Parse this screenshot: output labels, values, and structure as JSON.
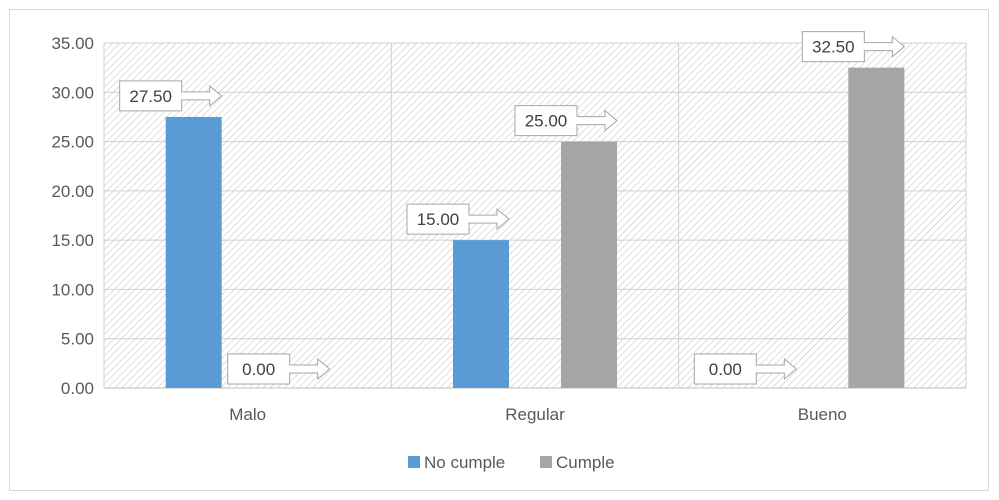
{
  "chart_data": {
    "type": "bar",
    "categories": [
      "Malo",
      "Regular",
      "Bueno"
    ],
    "series": [
      {
        "name": "No cumple",
        "values": [
          27.5,
          15.0,
          0.0
        ],
        "color": "#5b9bd5"
      },
      {
        "name": "Cumple",
        "values": [
          0.0,
          25.0,
          32.5
        ],
        "color": "#a5a5a5"
      }
    ],
    "ylim": [
      0,
      35
    ],
    "yticks": [
      "0.00",
      "5.00",
      "10.00",
      "15.00",
      "20.00",
      "25.00",
      "30.00",
      "35.00"
    ],
    "data_labels": [
      [
        "27.50",
        "15.00",
        "0.00"
      ],
      [
        "0.00",
        "25.00",
        "32.50"
      ]
    ],
    "grid": true,
    "plot_pattern": "diagonal-hatch",
    "legend_position": "bottom"
  }
}
